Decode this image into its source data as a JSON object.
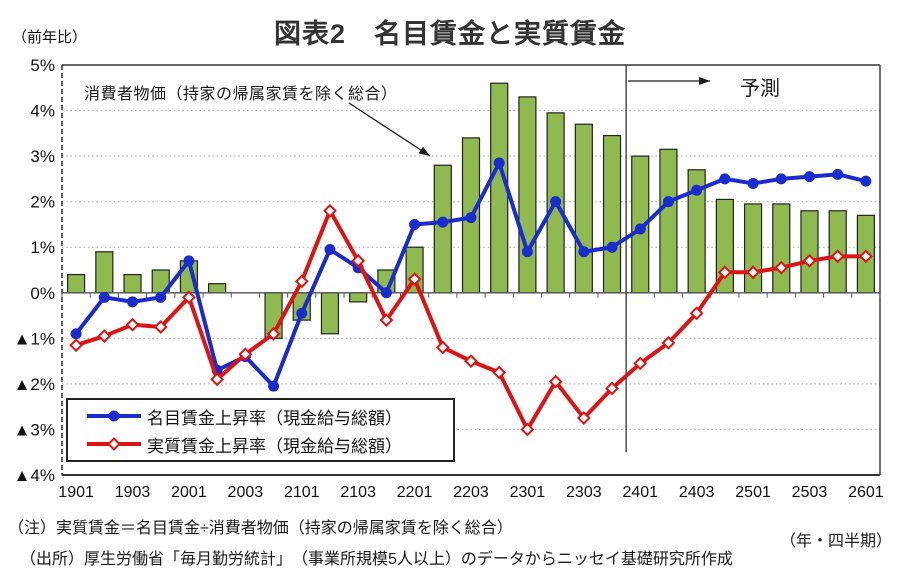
{
  "header": {
    "unit_label": "（前年比）",
    "title": "図表2　名目賃金と実質賃金"
  },
  "annotations": {
    "cpi_label": "消費者物価（持家の帰属家賃を除く総合）",
    "forecast_label": "予測"
  },
  "legend": {
    "items": [
      {
        "name": "nominal-wage",
        "label": "名目賃金上昇率（現金給与総額）"
      },
      {
        "name": "real-wage",
        "label": "実質賃金上昇率（現金給与総額）"
      }
    ]
  },
  "footer": {
    "note1": "（注）実質賃金＝名目賃金÷消費者物価（持家の帰属家賃を除く総合）",
    "note2": "（出所）厚生労働省「毎月勤労統計」　（事業所規模5人以上）のデータからニッセイ基礎研究所作成",
    "axis_note": "（年・四半期）"
  },
  "chart_data": {
    "type": "combo",
    "title": "図表2　名目賃金と実質賃金",
    "ylabel": "（前年比）",
    "xlabel": "（年・四半期）",
    "ylim": [
      -4,
      5
    ],
    "grid": true,
    "categories": [
      "1901",
      "1902",
      "1903",
      "1904",
      "2001",
      "2002",
      "2003",
      "2004",
      "2101",
      "2102",
      "2103",
      "2104",
      "2201",
      "2202",
      "2203",
      "2204",
      "2301",
      "2302",
      "2303",
      "2304",
      "2401",
      "2402",
      "2403",
      "2404",
      "2501",
      "2502",
      "2503",
      "2504",
      "2601"
    ],
    "x_label_every": 2,
    "y_ticks": [
      {
        "label": "5%",
        "value": 5
      },
      {
        "label": "4%",
        "value": 4
      },
      {
        "label": "3%",
        "value": 3
      },
      {
        "label": "2%",
        "value": 2
      },
      {
        "label": "1%",
        "value": 1
      },
      {
        "label": "0%",
        "value": 0
      },
      {
        "label": "▲1%",
        "value": -1
      },
      {
        "label": "▲2%",
        "value": -2
      },
      {
        "label": "▲3%",
        "value": -3
      },
      {
        "label": "▲4%",
        "value": -4
      }
    ],
    "series": [
      {
        "name": "消費者物価（持家の帰属家賃を除く総合）",
        "type": "bar",
        "color": "#8FBA4F",
        "border_color": "#222222",
        "values": [
          0.4,
          0.9,
          0.4,
          0.5,
          0.7,
          0.2,
          0.0,
          -1.0,
          -0.6,
          -0.9,
          -0.2,
          0.5,
          1.0,
          2.8,
          3.4,
          4.6,
          4.3,
          3.95,
          3.7,
          3.45,
          3.0,
          3.15,
          2.7,
          2.05,
          1.95,
          1.95,
          1.8,
          1.8,
          1.7
        ]
      },
      {
        "name": "名目賃金上昇率（現金給与総額）",
        "type": "line",
        "marker": "circle-filled",
        "color": "#1A2BD0",
        "values": [
          -0.9,
          -0.1,
          -0.2,
          -0.1,
          0.7,
          -1.7,
          -1.4,
          -2.05,
          -0.45,
          0.95,
          0.55,
          0.0,
          1.5,
          1.55,
          1.65,
          2.85,
          0.9,
          2.0,
          0.9,
          1.0,
          1.4,
          2.0,
          2.25,
          2.5,
          2.4,
          2.5,
          2.55,
          2.6,
          2.45
        ]
      },
      {
        "name": "実質賃金上昇率（現金給与総額）",
        "type": "line",
        "marker": "diamond-open",
        "color": "#DE1414",
        "values": [
          -1.15,
          -0.95,
          -0.7,
          -0.75,
          -0.1,
          -1.9,
          -1.35,
          -0.9,
          0.25,
          1.8,
          0.7,
          -0.6,
          0.3,
          -1.2,
          -1.5,
          -1.75,
          -3.0,
          -1.95,
          -2.75,
          -2.1,
          -1.55,
          -1.1,
          -0.45,
          0.45,
          0.45,
          0.55,
          0.7,
          0.8,
          0.8
        ]
      }
    ],
    "forecast_boundary_index": 20,
    "forecast_label": "予測"
  }
}
